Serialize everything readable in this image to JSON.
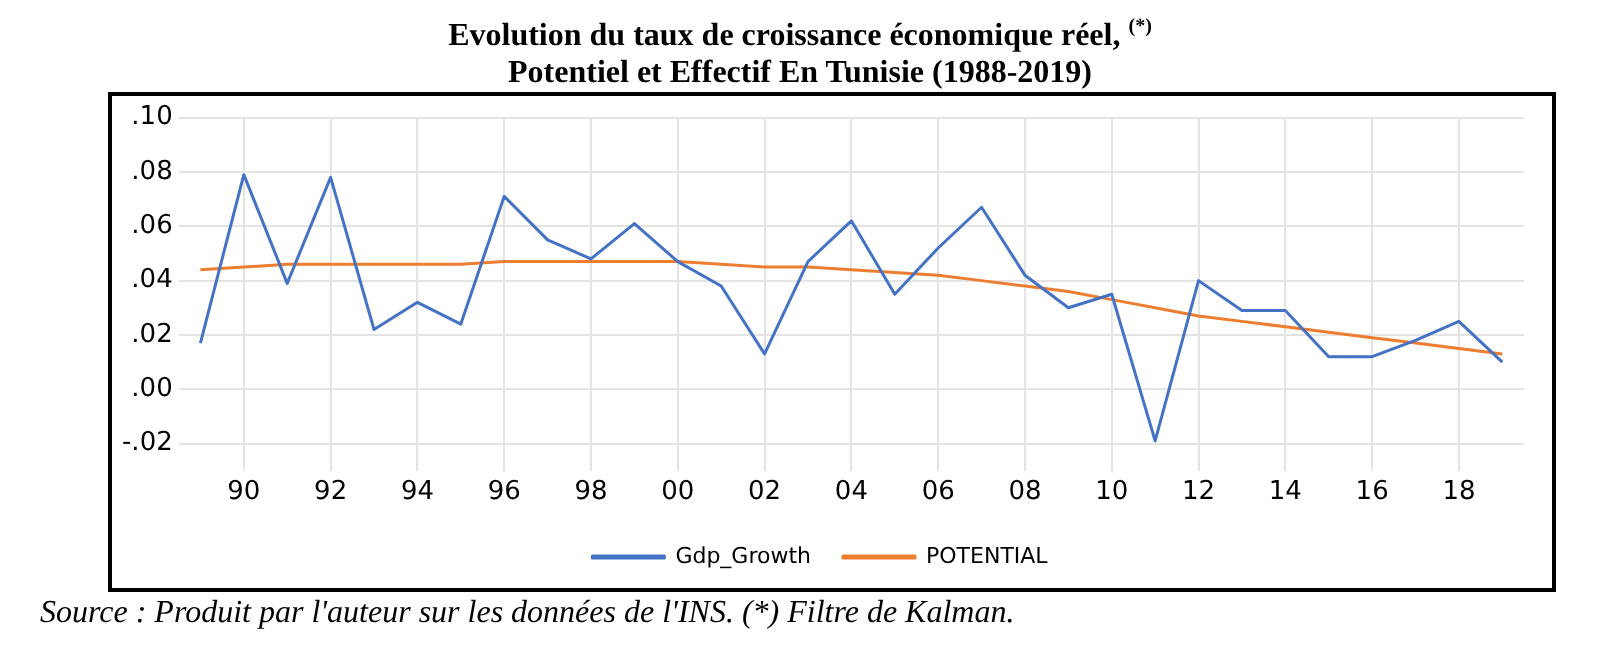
{
  "chart_data": {
    "type": "line",
    "title": "Evolution du taux de croissance économique réel, $^{(*)}$\nPotentiel et Effectif En Tunisie  (1988-2019)",
    "x": [
      1989,
      1990,
      1991,
      1992,
      1993,
      1994,
      1995,
      1996,
      1997,
      1998,
      1999,
      2000,
      2001,
      2002,
      2003,
      2004,
      2005,
      2006,
      2007,
      2008,
      2009,
      2010,
      2011,
      2012,
      2013,
      2014,
      2015,
      2016,
      2017,
      2018,
      2019
    ],
    "series": [
      {
        "name": "Gdp_Growth",
        "color": "#4472c4",
        "values": [
          0.017,
          0.079,
          0.039,
          0.078,
          0.022,
          0.032,
          0.024,
          0.071,
          0.055,
          0.048,
          0.061,
          0.047,
          0.038,
          0.013,
          0.047,
          0.062,
          0.035,
          0.052,
          0.067,
          0.042,
          0.03,
          0.035,
          -0.019,
          0.04,
          0.029,
          0.029,
          0.012,
          0.012,
          0.018,
          0.025,
          0.01
        ]
      },
      {
        "name": "POTENTIAL",
        "color": "#ed7d31",
        "values": [
          0.044,
          0.045,
          0.046,
          0.046,
          0.046,
          0.046,
          0.046,
          0.047,
          0.047,
          0.047,
          0.047,
          0.047,
          0.046,
          0.045,
          0.045,
          0.044,
          0.043,
          0.042,
          0.04,
          0.038,
          0.036,
          0.033,
          0.03,
          0.027,
          0.025,
          0.023,
          0.021,
          0.019,
          0.017,
          0.015,
          0.013
        ]
      }
    ],
    "xlim": [
      1988.5,
      2019.5
    ],
    "xticks": [
      {
        "value": 1990,
        "label": "90"
      },
      {
        "value": 1992,
        "label": "92"
      },
      {
        "value": 1994,
        "label": "94"
      },
      {
        "value": 1996,
        "label": "96"
      },
      {
        "value": 1998,
        "label": "98"
      },
      {
        "value": 2000,
        "label": "00"
      },
      {
        "value": 2002,
        "label": "02"
      },
      {
        "value": 2004,
        "label": "04"
      },
      {
        "value": 2006,
        "label": "06"
      },
      {
        "value": 2008,
        "label": "08"
      },
      {
        "value": 2010,
        "label": "10"
      },
      {
        "value": 2012,
        "label": "12"
      },
      {
        "value": 2014,
        "label": "14"
      },
      {
        "value": 2016,
        "label": "16"
      },
      {
        "value": 2018,
        "label": "18"
      }
    ],
    "ylim": [
      -0.03,
      0.1
    ],
    "yticks": [
      {
        "value": -0.02,
        "label": "-.02"
      },
      {
        "value": 0,
        "label": ".00"
      },
      {
        "value": 0.02,
        "label": ".02"
      },
      {
        "value": 0.04,
        "label": ".04"
      },
      {
        "value": 0.06,
        "label": ".06"
      },
      {
        "value": 0.08,
        "label": ".08"
      },
      {
        "value": 0.1,
        "label": ".10"
      }
    ],
    "grid": true,
    "legend": "bottom",
    "marker": "none",
    "line_style": "solid",
    "annotations": [
      "Source : Produit par l'auteur sur les données de l'INS. (*) Filtre de Kalman."
    ]
  }
}
